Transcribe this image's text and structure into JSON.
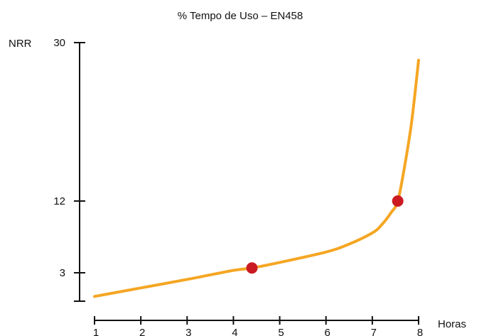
{
  "chart_data": {
    "type": "line",
    "title": "% Tempo de Uso – EN458",
    "xlabel": "Horas",
    "ylabel": "NRR",
    "x_ticks": [
      1,
      2,
      3,
      4,
      5,
      6,
      7,
      8
    ],
    "y_ticks": [
      3,
      12,
      30
    ],
    "xlim": [
      1,
      8
    ],
    "grid": false,
    "legend": "none",
    "series": [
      {
        "color": "#F5A623",
        "x": [
          1.0,
          2.0,
          3.0,
          4.0,
          4.4,
          5.0,
          6.0,
          6.5,
          7.0,
          7.2,
          7.4,
          7.55,
          7.7,
          7.85,
          8.0
        ],
        "y": [
          0.5,
          1.4,
          2.3,
          3.3,
          3.6,
          4.3,
          5.6,
          6.6,
          8.0,
          9.0,
          10.5,
          12.0,
          16.0,
          21.0,
          28.0
        ]
      }
    ],
    "highlight_points": [
      {
        "x": 4.4,
        "y": 3.6,
        "color": "#CC1A22"
      },
      {
        "x": 7.55,
        "y": 12.0,
        "color": "#CC1A22"
      }
    ]
  }
}
